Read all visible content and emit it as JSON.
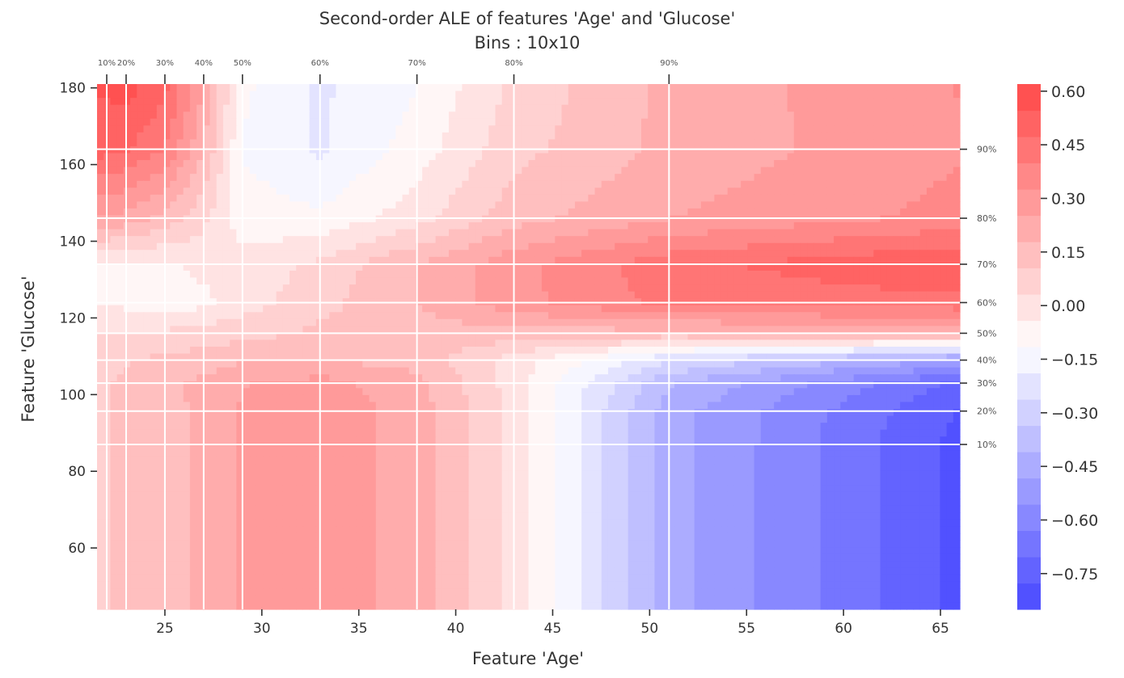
{
  "chart_data": {
    "type": "heatmap",
    "title": "Second-order ALE of features 'Age' and 'Glucose'",
    "subtitle": "Bins : 10x10",
    "xlabel": "Feature 'Age'",
    "ylabel": "Feature 'Glucose'",
    "xlim": [
      21.5,
      66
    ],
    "ylim": [
      44,
      181
    ],
    "x_ticks": [
      25,
      30,
      35,
      40,
      45,
      50,
      55,
      60,
      65
    ],
    "y_ticks": [
      60,
      80,
      100,
      120,
      140,
      160,
      180
    ],
    "x_quantiles": [
      {
        "label": "10%",
        "value": 22
      },
      {
        "label": "20%",
        "value": 23
      },
      {
        "label": "30%",
        "value": 25
      },
      {
        "label": "40%",
        "value": 27
      },
      {
        "label": "50%",
        "value": 29
      },
      {
        "label": "60%",
        "value": 33
      },
      {
        "label": "70%",
        "value": 38
      },
      {
        "label": "80%",
        "value": 43
      },
      {
        "label": "90%",
        "value": 51
      }
    ],
    "y_quantiles": [
      {
        "label": "10%",
        "value": 87
      },
      {
        "label": "20%",
        "value": 95.7
      },
      {
        "label": "30%",
        "value": 103
      },
      {
        "label": "40%",
        "value": 109
      },
      {
        "label": "50%",
        "value": 116
      },
      {
        "label": "60%",
        "value": 124
      },
      {
        "label": "70%",
        "value": 134
      },
      {
        "label": "80%",
        "value": 146
      },
      {
        "label": "90%",
        "value": 164
      }
    ],
    "grid": true,
    "colorbar": {
      "colormap": "bwr",
      "min": -0.85,
      "max": 0.62,
      "levels": 20,
      "ticks": [
        0.6,
        0.45,
        0.3,
        0.15,
        0.0,
        -0.15,
        -0.3,
        -0.45,
        -0.6,
        -0.75
      ],
      "tick_labels": [
        "0.60",
        "0.45",
        "0.30",
        "0.15",
        "0.00",
        "−0.15",
        "−0.30",
        "−0.45",
        "−0.60",
        "−0.75"
      ]
    },
    "ale_grid": {
      "x": [
        21.5,
        22,
        23,
        25,
        27,
        29,
        33,
        38,
        43,
        51,
        66
      ],
      "y": [
        44,
        87,
        95.7,
        103,
        109,
        116,
        124,
        134,
        146,
        164,
        181
      ],
      "z": [
        [
          0.1,
          0.1,
          0.12,
          0.15,
          0.2,
          0.26,
          0.3,
          0.22,
          0.0,
          -0.45,
          -0.8
        ],
        [
          0.1,
          0.1,
          0.12,
          0.15,
          0.2,
          0.26,
          0.3,
          0.22,
          0.0,
          -0.45,
          -0.8
        ],
        [
          0.1,
          0.1,
          0.12,
          0.15,
          0.2,
          0.26,
          0.3,
          0.22,
          0.0,
          -0.45,
          -0.78
        ],
        [
          0.1,
          0.1,
          0.12,
          0.16,
          0.2,
          0.25,
          0.28,
          0.2,
          0.0,
          -0.4,
          -0.72
        ],
        [
          0.08,
          0.08,
          0.1,
          0.12,
          0.14,
          0.17,
          0.18,
          0.15,
          0.0,
          -0.25,
          -0.5
        ],
        [
          0.03,
          0.03,
          0.03,
          0.05,
          0.06,
          0.08,
          0.12,
          0.15,
          0.15,
          0.15,
          0.2
        ],
        [
          -0.05,
          -0.05,
          -0.06,
          -0.1,
          -0.06,
          0.0,
          0.08,
          0.18,
          0.3,
          0.42,
          0.45
        ],
        [
          -0.05,
          -0.05,
          -0.05,
          -0.05,
          -0.02,
          -0.02,
          0.05,
          0.18,
          0.3,
          0.45,
          0.55
        ],
        [
          0.25,
          0.25,
          0.22,
          0.15,
          0.05,
          -0.08,
          -0.1,
          0.0,
          0.15,
          0.25,
          0.35
        ],
        [
          0.5,
          0.5,
          0.48,
          0.4,
          0.18,
          -0.12,
          -0.2,
          -0.08,
          0.08,
          0.2,
          0.32
        ],
        [
          0.56,
          0.56,
          0.58,
          0.5,
          0.25,
          -0.1,
          -0.2,
          -0.12,
          0.05,
          0.2,
          0.33
        ]
      ]
    }
  }
}
